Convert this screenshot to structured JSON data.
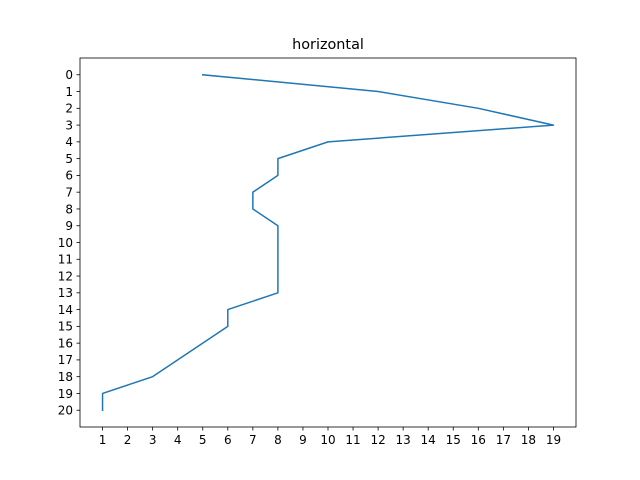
{
  "chart_data": {
    "type": "line",
    "title": "horizontal",
    "xlabel": "",
    "ylabel": "",
    "orientation": "horizontal",
    "y_inverted": true,
    "grid": false,
    "legend": "none",
    "xlim": [
      0.1,
      19.9
    ],
    "ylim": [
      -1,
      21
    ],
    "x_ticks": [
      1,
      2,
      3,
      4,
      5,
      6,
      7,
      8,
      9,
      10,
      11,
      12,
      13,
      14,
      15,
      16,
      17,
      18,
      19
    ],
    "y_ticks": [
      0,
      1,
      2,
      3,
      4,
      5,
      6,
      7,
      8,
      9,
      10,
      11,
      12,
      13,
      14,
      15,
      16,
      17,
      18,
      19,
      20
    ],
    "series": [
      {
        "color": "#1f77b4",
        "points": [
          {
            "x": 5,
            "y": 0
          },
          {
            "x": 12,
            "y": 1
          },
          {
            "x": 16,
            "y": 2
          },
          {
            "x": 19,
            "y": 3
          },
          {
            "x": 10,
            "y": 4
          },
          {
            "x": 8,
            "y": 5
          },
          {
            "x": 8,
            "y": 6
          },
          {
            "x": 7,
            "y": 7
          },
          {
            "x": 7,
            "y": 8
          },
          {
            "x": 8,
            "y": 9
          },
          {
            "x": 8,
            "y": 10
          },
          {
            "x": 8,
            "y": 11
          },
          {
            "x": 8,
            "y": 12
          },
          {
            "x": 8,
            "y": 13
          },
          {
            "x": 6,
            "y": 14
          },
          {
            "x": 6,
            "y": 15
          },
          {
            "x": 5,
            "y": 16
          },
          {
            "x": 4,
            "y": 17
          },
          {
            "x": 3,
            "y": 18
          },
          {
            "x": 1,
            "y": 19
          },
          {
            "x": 1,
            "y": 20
          }
        ]
      }
    ]
  }
}
